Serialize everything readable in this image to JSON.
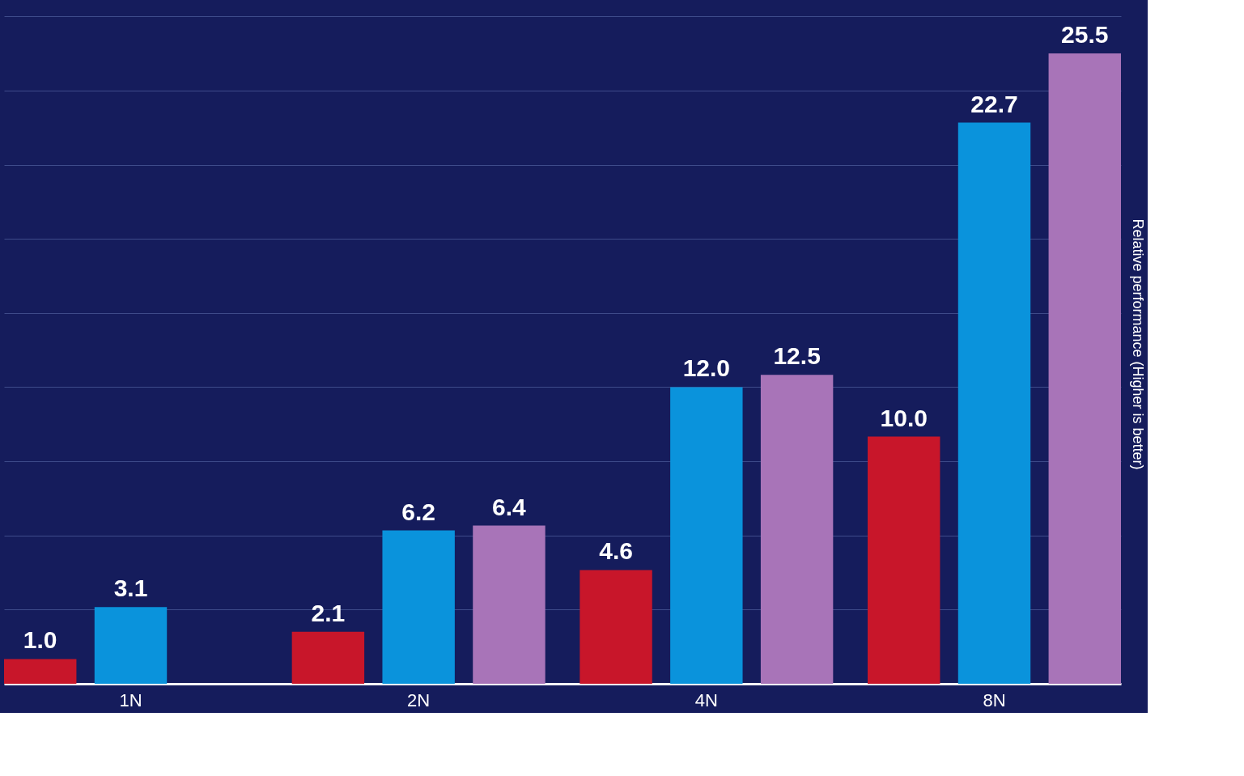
{
  "chart_data": {
    "type": "bar",
    "ylabel": "Relative performance (Higher is better)",
    "categories": [
      "1N",
      "2N",
      "4N",
      "8N"
    ],
    "series": [
      {
        "color": "#c8162a",
        "values": [
          1.0,
          2.1,
          4.6,
          10.0
        ],
        "value_labels": [
          "1.0",
          "2.1",
          "4.6",
          "10.0"
        ]
      },
      {
        "color": "#0a93dc",
        "values": [
          3.1,
          6.2,
          12.0,
          22.7
        ],
        "value_labels": [
          "3.1",
          "6.2",
          "12.0",
          "22.7"
        ]
      },
      {
        "color": "#a874b8",
        "values": [
          null,
          6.4,
          12.5,
          25.5
        ],
        "value_labels": [
          null,
          "6.4",
          "12.5",
          "25.5"
        ]
      }
    ],
    "ylim": [
      0,
      27.5
    ],
    "yticks": [
      {
        "value": 0,
        "label": null
      },
      {
        "value": 3,
        "label": null
      },
      {
        "value": 6,
        "label": null
      },
      {
        "value": 9,
        "label": null
      },
      {
        "value": 12,
        "label": null
      },
      {
        "value": 15,
        "label": null
      },
      {
        "value": 18,
        "label": null
      },
      {
        "value": 21,
        "label": null
      },
      {
        "value": 24,
        "label": null
      },
      {
        "value": 27,
        "label": null
      }
    ],
    "grid": "y",
    "tick_labels": "x",
    "legend": false
  }
}
